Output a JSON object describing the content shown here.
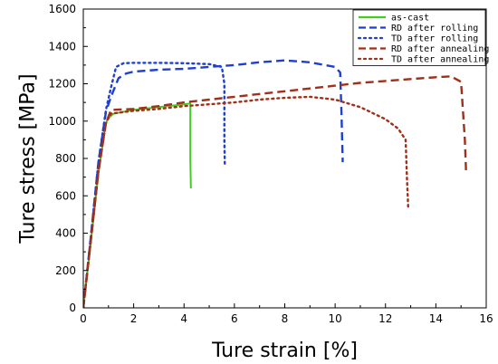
{
  "chart_data": {
    "type": "line",
    "title": "",
    "xlabel": "Ture strain [%]",
    "ylabel": "Ture stress [MPa]",
    "xlim": [
      0,
      16
    ],
    "ylim": [
      0,
      1600
    ],
    "x_ticks": [
      0,
      2,
      4,
      6,
      8,
      10,
      12,
      14,
      16
    ],
    "y_ticks": [
      0,
      200,
      400,
      600,
      800,
      1000,
      1200,
      1400,
      1600
    ],
    "grid": false,
    "legend_position": "top-right",
    "series": [
      {
        "name": "as-cast",
        "color": "#44cc22",
        "style": "solid",
        "x": [
          0,
          0.3,
          0.6,
          0.85,
          0.95,
          1.2,
          2,
          3,
          4,
          4.25,
          4.25,
          4.27
        ],
        "y": [
          0,
          350,
          720,
          950,
          1010,
          1040,
          1060,
          1075,
          1090,
          1095,
          800,
          640
        ]
      },
      {
        "name": "RD after rolling",
        "color": "#1f3fcf",
        "style": "dash",
        "x": [
          0,
          0.3,
          0.6,
          0.9,
          1.1,
          1.4,
          1.7,
          2,
          3,
          4,
          5,
          6,
          7,
          8,
          9,
          10,
          10.2,
          10.25,
          10.3
        ],
        "y": [
          0,
          380,
          780,
          1050,
          1130,
          1230,
          1255,
          1265,
          1275,
          1280,
          1290,
          1300,
          1315,
          1325,
          1315,
          1290,
          1260,
          1050,
          780
        ]
      },
      {
        "name": "TD after rolling",
        "color": "#1f3fcf",
        "style": "dot",
        "x": [
          0,
          0.3,
          0.6,
          0.9,
          1.1,
          1.3,
          1.6,
          2,
          3,
          4,
          5,
          5.5,
          5.6,
          5.6,
          5.62
        ],
        "y": [
          0,
          380,
          780,
          1060,
          1180,
          1290,
          1310,
          1312,
          1312,
          1310,
          1305,
          1290,
          1200,
          900,
          760
        ]
      },
      {
        "name": "RD after annealing",
        "color": "#a0301a",
        "style": "dash",
        "x": [
          0,
          0.3,
          0.6,
          0.9,
          1.1,
          2,
          3,
          4,
          5,
          6,
          7,
          8,
          9,
          10,
          11,
          12,
          13,
          14,
          14.6,
          15,
          15.15,
          15.2
        ],
        "y": [
          0,
          360,
          730,
          990,
          1060,
          1065,
          1080,
          1100,
          1115,
          1130,
          1145,
          1160,
          1175,
          1190,
          1205,
          1215,
          1225,
          1235,
          1240,
          1210,
          900,
          720
        ]
      },
      {
        "name": "TD after annealing",
        "color": "#a0301a",
        "style": "dot",
        "x": [
          0,
          0.3,
          0.6,
          0.9,
          1.1,
          2,
          3,
          4,
          5,
          6,
          7,
          8,
          9,
          10,
          11,
          12,
          12.5,
          12.8,
          12.85,
          12.9
        ],
        "y": [
          0,
          360,
          730,
          990,
          1040,
          1055,
          1065,
          1080,
          1090,
          1100,
          1115,
          1125,
          1130,
          1115,
          1075,
          1010,
          960,
          900,
          700,
          540
        ]
      }
    ]
  }
}
